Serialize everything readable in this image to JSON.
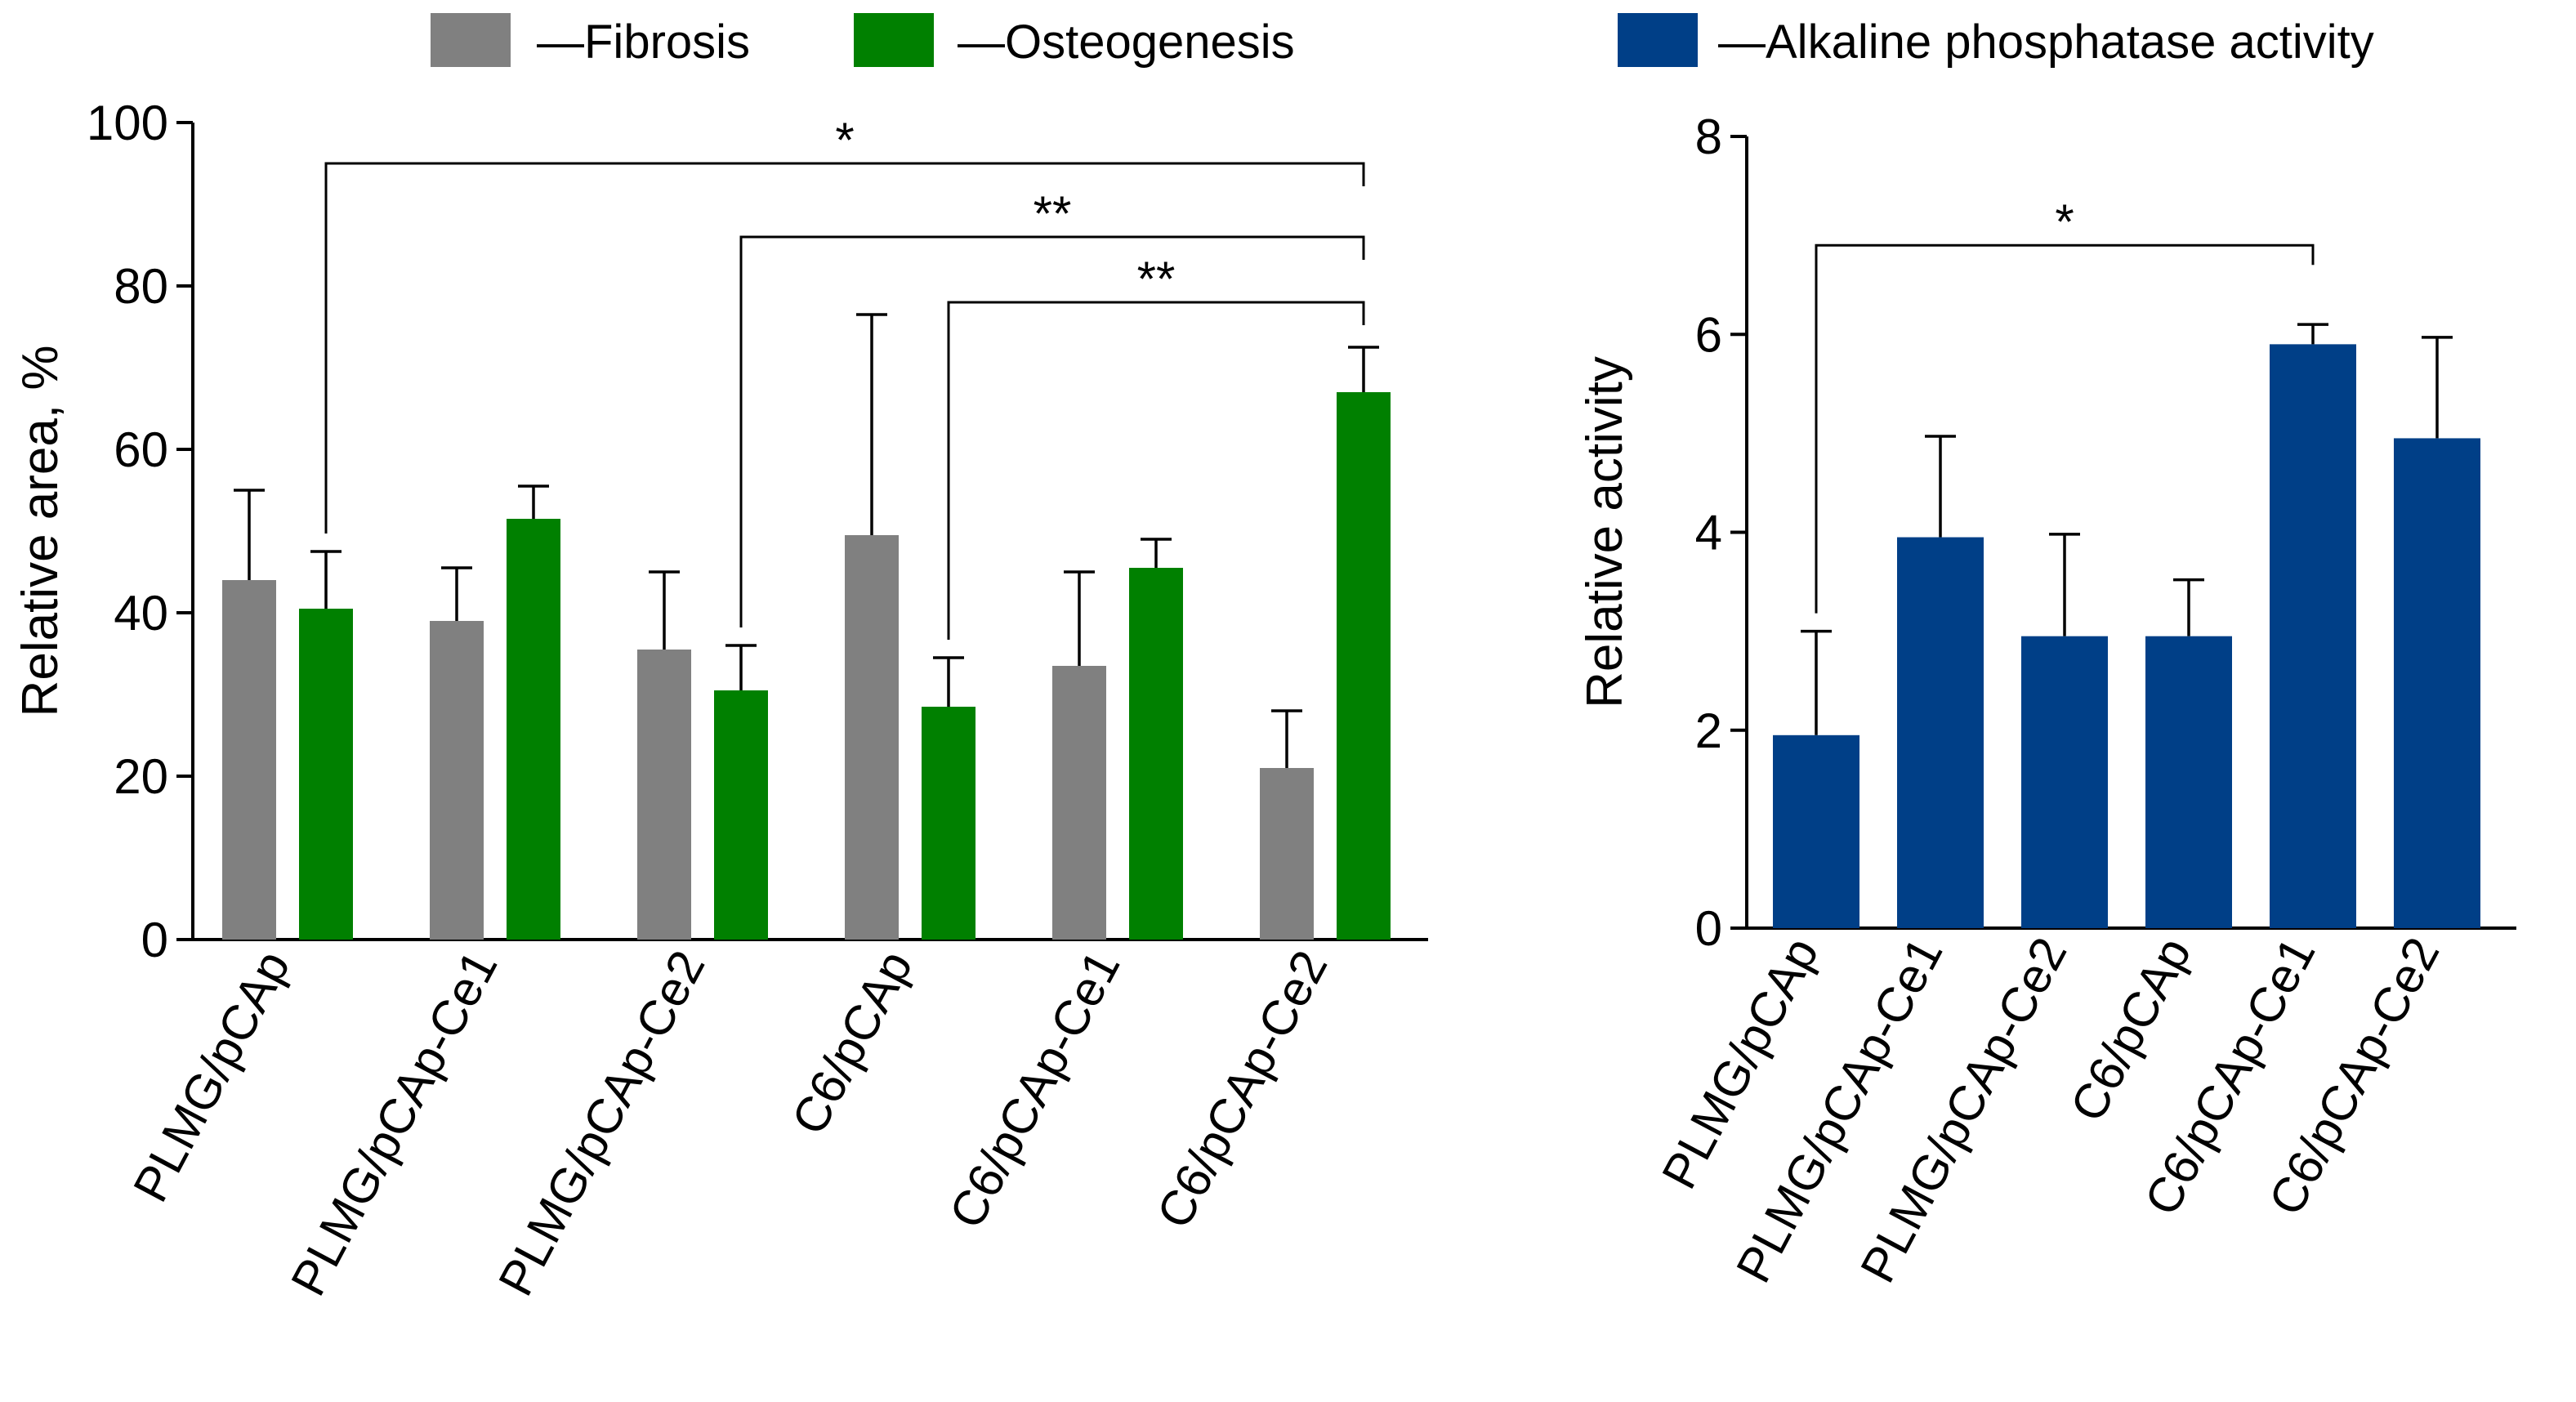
{
  "legend_left": {
    "items": [
      {
        "label": "—Fibrosis",
        "color": "#808080"
      },
      {
        "label": "—Osteogenesis",
        "color": "#008000"
      }
    ]
  },
  "legend_right": {
    "items": [
      {
        "label": "—Alkaline phosphatase activity",
        "color": "#003F87"
      }
    ]
  },
  "chart_data": [
    {
      "type": "bar",
      "title": "",
      "xlabel": "",
      "ylabel": "Relative area, %",
      "ylim": [
        0,
        100
      ],
      "yticks": [
        0,
        20,
        40,
        60,
        80,
        100
      ],
      "categories": [
        "PLMG/pCAp",
        "PLMG/pCAp-Ce1",
        "PLMG/pCAp-Ce2",
        "C6/pCAp",
        "C6/pCAp-Ce1",
        "C6/pCAp-Ce2"
      ],
      "series": [
        {
          "name": "Fibrosis",
          "color": "#808080",
          "values": [
            44,
            39,
            35.5,
            49.5,
            33.5,
            21
          ],
          "error_upper": [
            55,
            45.5,
            45,
            76.5,
            45,
            28
          ]
        },
        {
          "name": "Osteogenesis",
          "color": "#008000",
          "values": [
            40.5,
            51.5,
            30.5,
            28.5,
            45.5,
            67
          ],
          "error_upper": [
            47.5,
            55.5,
            36,
            34.5,
            49,
            72.5
          ]
        }
      ],
      "significance": [
        {
          "from_category": "PLMG/pCAp",
          "to_category": "C6/pCAp-Ce2",
          "series": "Osteogenesis",
          "label": "*",
          "level": 95
        },
        {
          "from_category": "PLMG/pCAp-Ce2",
          "to_category": "C6/pCAp-Ce2",
          "series": "Osteogenesis",
          "label": "**",
          "level": 86
        },
        {
          "from_category": "C6/pCAp",
          "to_category": "C6/pCAp-Ce2",
          "series": "Osteogenesis",
          "label": "**",
          "level": 78
        }
      ]
    },
    {
      "type": "bar",
      "title": "",
      "xlabel": "",
      "ylabel": "Relative activity",
      "ylim": [
        0,
        8
      ],
      "yticks": [
        0,
        2,
        4,
        6,
        8
      ],
      "categories": [
        "PLMG/pCAp",
        "PLMG/pCAp-Ce1",
        "PLMG/pCAp-Ce2",
        "C6/pCAp",
        "C6/pCAp-Ce1",
        "C6/pCAp-Ce2"
      ],
      "series": [
        {
          "name": "Alkaline phosphatase activity",
          "color": "#003F87",
          "values": [
            1.95,
            3.95,
            2.95,
            2.95,
            5.9,
            4.95
          ],
          "error_upper": [
            3.0,
            4.97,
            3.98,
            3.52,
            6.1,
            5.97
          ]
        }
      ],
      "significance": [
        {
          "from_category": "PLMG/pCAp",
          "to_category": "C6/pCAp-Ce1",
          "label": "*",
          "level": 6.9
        }
      ]
    }
  ]
}
